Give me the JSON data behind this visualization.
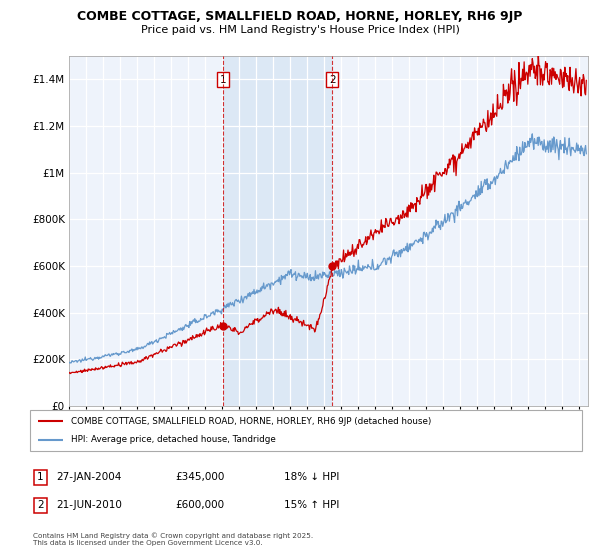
{
  "title": "COMBE COTTAGE, SMALLFIELD ROAD, HORNE, HORLEY, RH6 9JP",
  "subtitle": "Price paid vs. HM Land Registry's House Price Index (HPI)",
  "ylim": [
    0,
    1500000
  ],
  "xlim_start": 1995,
  "xlim_end": 2025.5,
  "marker1_x": 2004.07,
  "marker1_label": "1",
  "marker1_date": "27-JAN-2004",
  "marker1_price": "£345,000",
  "marker1_hpi": "18% ↓ HPI",
  "marker1_val": 345000,
  "marker2_x": 2010.47,
  "marker2_label": "2",
  "marker2_date": "21-JUN-2010",
  "marker2_price": "£600,000",
  "marker2_hpi": "15% ↑ HPI",
  "marker2_val": 600000,
  "house_color": "#cc0000",
  "hpi_color": "#6699cc",
  "shade_color": "#dce8f5",
  "background_color": "#eef3fb",
  "grid_color": "#d0d8e8",
  "legend_house": "COMBE COTTAGE, SMALLFIELD ROAD, HORNE, HORLEY, RH6 9JP (detached house)",
  "legend_hpi": "HPI: Average price, detached house, Tandridge",
  "footer": "Contains HM Land Registry data © Crown copyright and database right 2025.\nThis data is licensed under the Open Government Licence v3.0."
}
